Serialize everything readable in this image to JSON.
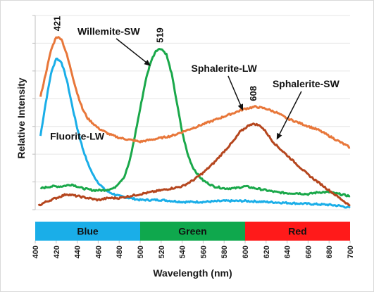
{
  "chart_data": {
    "type": "line",
    "xlabel": "Wavelength (nm)",
    "ylabel": "Relative Intensity",
    "xlim": [
      400,
      700
    ],
    "ylim": [
      0,
      100
    ],
    "x_ticks": [
      "400",
      "420",
      "440",
      "460",
      "480",
      "500",
      "520",
      "540",
      "560",
      "580",
      "600",
      "620",
      "640",
      "660",
      "680",
      "700"
    ],
    "grid": "horizontal",
    "series": [
      {
        "name": "Fluorite-LW",
        "color": "#1aaee8",
        "points": [
          [
            405,
            38
          ],
          [
            410,
            55
          ],
          [
            415,
            70
          ],
          [
            420,
            78
          ],
          [
            425,
            76
          ],
          [
            430,
            67
          ],
          [
            435,
            54
          ],
          [
            440,
            42
          ],
          [
            445,
            32
          ],
          [
            450,
            24
          ],
          [
            455,
            18
          ],
          [
            460,
            14
          ],
          [
            465,
            11
          ],
          [
            470,
            9
          ],
          [
            480,
            7
          ],
          [
            490,
            6
          ],
          [
            500,
            5
          ],
          [
            520,
            5
          ],
          [
            540,
            4
          ],
          [
            560,
            4
          ],
          [
            580,
            4.5
          ],
          [
            600,
            4.5
          ],
          [
            620,
            4
          ],
          [
            640,
            3.5
          ],
          [
            660,
            3
          ],
          [
            680,
            2.5
          ],
          [
            690,
            2
          ],
          [
            700,
            1
          ]
        ]
      },
      {
        "name": "Willemite-SW",
        "color": "#1aa84a",
        "points": [
          [
            405,
            11
          ],
          [
            415,
            12
          ],
          [
            425,
            12
          ],
          [
            435,
            13
          ],
          [
            445,
            11
          ],
          [
            455,
            10
          ],
          [
            465,
            10
          ],
          [
            475,
            11
          ],
          [
            485,
            17
          ],
          [
            490,
            25
          ],
          [
            495,
            38
          ],
          [
            500,
            52
          ],
          [
            505,
            66
          ],
          [
            510,
            76
          ],
          [
            515,
            82
          ],
          [
            520,
            83
          ],
          [
            525,
            80
          ],
          [
            530,
            70
          ],
          [
            535,
            55
          ],
          [
            540,
            40
          ],
          [
            545,
            29
          ],
          [
            550,
            22
          ],
          [
            555,
            18
          ],
          [
            560,
            15
          ],
          [
            570,
            12
          ],
          [
            580,
            11
          ],
          [
            590,
            11
          ],
          [
            600,
            12
          ],
          [
            610,
            11
          ],
          [
            620,
            10
          ],
          [
            630,
            9
          ],
          [
            640,
            8.5
          ],
          [
            650,
            8.5
          ],
          [
            660,
            8
          ],
          [
            670,
            9
          ],
          [
            680,
            9
          ],
          [
            690,
            8
          ],
          [
            700,
            7
          ]
        ]
      },
      {
        "name": "Sphalerite-LW",
        "color": "#e8773a",
        "points": [
          [
            405,
            58
          ],
          [
            410,
            70
          ],
          [
            415,
            82
          ],
          [
            420,
            89
          ],
          [
            425,
            88
          ],
          [
            430,
            80
          ],
          [
            435,
            70
          ],
          [
            440,
            60
          ],
          [
            445,
            52
          ],
          [
            450,
            47
          ],
          [
            460,
            42
          ],
          [
            470,
            39
          ],
          [
            480,
            37
          ],
          [
            490,
            36
          ],
          [
            500,
            35
          ],
          [
            510,
            36
          ],
          [
            520,
            37
          ],
          [
            530,
            38
          ],
          [
            540,
            40
          ],
          [
            550,
            42
          ],
          [
            560,
            44
          ],
          [
            570,
            46
          ],
          [
            580,
            48
          ],
          [
            590,
            50
          ],
          [
            600,
            52
          ],
          [
            610,
            53
          ],
          [
            620,
            52
          ],
          [
            630,
            50
          ],
          [
            640,
            47
          ],
          [
            650,
            45
          ],
          [
            660,
            43
          ],
          [
            670,
            41
          ],
          [
            680,
            38
          ],
          [
            690,
            35
          ],
          [
            700,
            32
          ]
        ]
      },
      {
        "name": "Sphalerite-SW",
        "color": "#b5461e",
        "points": [
          [
            403,
            2
          ],
          [
            410,
            4
          ],
          [
            420,
            6
          ],
          [
            430,
            8
          ],
          [
            440,
            7
          ],
          [
            450,
            6
          ],
          [
            460,
            5
          ],
          [
            470,
            6
          ],
          [
            480,
            6
          ],
          [
            490,
            7
          ],
          [
            500,
            8
          ],
          [
            510,
            9
          ],
          [
            520,
            10
          ],
          [
            530,
            11
          ],
          [
            540,
            12
          ],
          [
            550,
            15
          ],
          [
            560,
            19
          ],
          [
            570,
            24
          ],
          [
            580,
            30
          ],
          [
            590,
            36
          ],
          [
            595,
            40
          ],
          [
            600,
            42
          ],
          [
            605,
            44
          ],
          [
            610,
            44
          ],
          [
            615,
            43
          ],
          [
            620,
            40
          ],
          [
            625,
            36
          ],
          [
            630,
            33
          ],
          [
            640,
            28
          ],
          [
            650,
            23
          ],
          [
            660,
            18
          ],
          [
            670,
            14
          ],
          [
            680,
            10
          ],
          [
            690,
            6
          ],
          [
            700,
            2
          ]
        ]
      }
    ],
    "annotations": [
      {
        "text": "Willemite-SW",
        "label_at": [
          470,
          90
        ],
        "arrow_to": [
          510,
          74
        ]
      },
      {
        "text": "Sphalerite-LW",
        "label_at": [
          580,
          71
        ],
        "arrow_to": [
          598,
          51
        ]
      },
      {
        "text": "Sphalerite-SW",
        "label_at": [
          658,
          63
        ],
        "arrow_to": [
          630,
          36
        ]
      },
      {
        "text": "Fluorite-LW",
        "label_at": [
          440,
          36
        ]
      }
    ],
    "peaks": [
      {
        "label": "421",
        "x": 421,
        "y": 89
      },
      {
        "label": "519",
        "x": 519,
        "y": 83
      },
      {
        "label": "608",
        "x": 608,
        "y": 53
      }
    ],
    "color_bands": [
      {
        "label": "Blue",
        "from": 400,
        "to": 500,
        "color": "#1aaee8"
      },
      {
        "label": "Green",
        "from": 500,
        "to": 600,
        "color": "#0fa84d"
      },
      {
        "label": "Red",
        "from": 600,
        "to": 700,
        "color": "#ff1a1a"
      }
    ]
  }
}
